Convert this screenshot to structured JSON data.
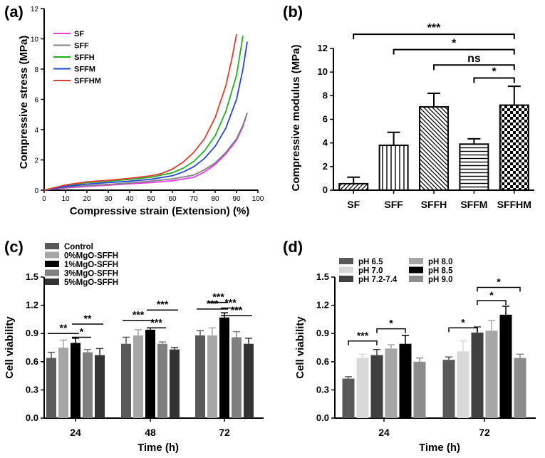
{
  "figure_name": "composite-figure",
  "chart_data": [
    {
      "id": "a",
      "type": "line",
      "panel_label": "(a)",
      "xlabel": "Compressive strain (Extension) (%)",
      "ylabel": "Compressive stress (MPa)",
      "xlim": [
        0,
        100
      ],
      "ylim": [
        0,
        12
      ],
      "xticks": [
        0,
        10,
        20,
        30,
        40,
        50,
        60,
        70,
        80,
        90,
        100
      ],
      "yticks": [
        0,
        2,
        4,
        6,
        8,
        10,
        12
      ],
      "legend_position": "top-left",
      "series": [
        {
          "name": "SF",
          "color": "#e63be6",
          "x": [
            0,
            10,
            20,
            30,
            40,
            50,
            60,
            70,
            75,
            80,
            85,
            90,
            93,
            95
          ],
          "y": [
            0,
            0.15,
            0.25,
            0.33,
            0.42,
            0.5,
            0.62,
            0.85,
            1.2,
            1.7,
            2.4,
            3.3,
            4.2,
            5.1
          ]
        },
        {
          "name": "SFF",
          "color": "#808080",
          "x": [
            0,
            10,
            20,
            30,
            40,
            50,
            60,
            70,
            75,
            80,
            85,
            90,
            93,
            95
          ],
          "y": [
            0,
            0.2,
            0.3,
            0.38,
            0.48,
            0.6,
            0.75,
            1.0,
            1.35,
            1.8,
            2.5,
            3.4,
            4.3,
            5.1
          ]
        },
        {
          "name": "SFFH",
          "color": "#1fb21f",
          "x": [
            0,
            10,
            20,
            30,
            40,
            50,
            60,
            65,
            70,
            75,
            80,
            85,
            90,
            93
          ],
          "y": [
            0,
            0.3,
            0.5,
            0.6,
            0.72,
            0.85,
            1.15,
            1.45,
            1.9,
            2.6,
            3.6,
            5.2,
            7.6,
            10.2
          ]
        },
        {
          "name": "SFFM",
          "color": "#2647d6",
          "x": [
            0,
            10,
            20,
            30,
            40,
            50,
            60,
            65,
            70,
            75,
            80,
            85,
            90,
            93,
            95
          ],
          "y": [
            0,
            0.25,
            0.4,
            0.5,
            0.6,
            0.72,
            0.95,
            1.2,
            1.55,
            2.1,
            2.9,
            4.1,
            6.0,
            8.0,
            9.8
          ]
        },
        {
          "name": "SFFHM",
          "color": "#e63b30",
          "x": [
            0,
            10,
            20,
            30,
            40,
            50,
            55,
            60,
            65,
            70,
            75,
            80,
            85,
            88,
            90
          ],
          "y": [
            0,
            0.35,
            0.55,
            0.65,
            0.78,
            0.95,
            1.1,
            1.4,
            1.85,
            2.5,
            3.4,
            4.8,
            6.9,
            8.8,
            10.3
          ]
        }
      ]
    },
    {
      "id": "b",
      "type": "bar",
      "panel_label": "(b)",
      "ylabel": "Compressive modulus (MPa)",
      "ylim": [
        0,
        12
      ],
      "yticks": [
        0,
        2,
        4,
        6,
        8,
        10,
        12
      ],
      "categories": [
        "SF",
        "SFF",
        "SFFH",
        "SFFM",
        "SFFHM"
      ],
      "values": [
        0.55,
        3.8,
        7.05,
        3.9,
        7.2
      ],
      "errors": [
        0.55,
        1.1,
        1.15,
        0.45,
        1.6
      ],
      "patterns": [
        "diag-up",
        "vertical",
        "diag-down",
        "horizontal",
        "checker"
      ],
      "significance": [
        {
          "from": 0,
          "to": 4,
          "label": "***",
          "level": 13.2
        },
        {
          "from": 1,
          "to": 4,
          "label": "*",
          "level": 11.9
        },
        {
          "from": 2,
          "to": 4,
          "label": "ns",
          "level": 10.6
        },
        {
          "from": 3,
          "to": 4,
          "label": "*",
          "level": 9.5
        }
      ]
    },
    {
      "id": "c",
      "type": "bar",
      "panel_label": "(c)",
      "xlabel": "Time (h)",
      "ylabel": "Cell viability",
      "ylim": [
        0,
        1.5
      ],
      "yticks": [
        0.0,
        0.3,
        0.6,
        0.9,
        1.2,
        1.5
      ],
      "categories": [
        "24",
        "48",
        "72"
      ],
      "legend_position": "top-left",
      "series": [
        {
          "name": "Control",
          "color": "#595959",
          "values": [
            0.64,
            0.79,
            0.88
          ],
          "errors": [
            0.06,
            0.07,
            0.05
          ]
        },
        {
          "name": "0%MgO-SFFH",
          "color": "#a6a6a6",
          "values": [
            0.75,
            0.88,
            0.88
          ],
          "errors": [
            0.08,
            0.06,
            0.08
          ]
        },
        {
          "name": "1%MgO-SFFH",
          "color": "#000000",
          "values": [
            0.8,
            0.94,
            1.07
          ],
          "errors": [
            0.05,
            0.02,
            0.05
          ]
        },
        {
          "name": "3%MgO-SFFH",
          "color": "#7f7f7f",
          "values": [
            0.7,
            0.79,
            0.86
          ],
          "errors": [
            0.03,
            0.02,
            0.06
          ]
        },
        {
          "name": "5%MgO-SFFH",
          "color": "#333333",
          "values": [
            0.67,
            0.73,
            0.79
          ],
          "errors": [
            0.07,
            0.02,
            0.06
          ]
        }
      ],
      "significance": [
        {
          "group": 0,
          "from": 0,
          "to": 2,
          "label": "**",
          "level": 0.9
        },
        {
          "group": 0,
          "from": 2,
          "to": 3,
          "label": "*",
          "level": 0.86
        },
        {
          "group": 0,
          "from": 2,
          "to": 4,
          "label": "**",
          "level": 1.0
        },
        {
          "group": 1,
          "from": 0,
          "to": 2,
          "label": "***",
          "level": 1.04
        },
        {
          "group": 1,
          "from": 2,
          "to": 3,
          "label": "***",
          "level": 0.96
        },
        {
          "group": 1,
          "from": 2,
          "to": 4,
          "label": "***",
          "level": 1.15
        },
        {
          "group": 2,
          "from": 1,
          "to": 2,
          "label": "***",
          "level": 1.23
        },
        {
          "group": 2,
          "from": 0,
          "to": 2,
          "label": "***",
          "level": 1.16
        },
        {
          "group": 2,
          "from": 2,
          "to": 3,
          "label": "***",
          "level": 1.17
        },
        {
          "group": 2,
          "from": 2,
          "to": 4,
          "label": "***",
          "level": 1.09
        }
      ]
    },
    {
      "id": "d",
      "type": "bar",
      "panel_label": "(d)",
      "xlabel": "Time (h)",
      "ylabel": "Cell viability",
      "ylim": [
        0,
        1.5
      ],
      "yticks": [
        0.0,
        0.3,
        0.6,
        0.9,
        1.2,
        1.5
      ],
      "categories": [
        "24",
        "72"
      ],
      "legend_position": "top-left",
      "series": [
        {
          "name": "pH 6.5",
          "color": "#595959",
          "values": [
            0.42,
            0.62
          ],
          "errors": [
            0.02,
            0.03
          ]
        },
        {
          "name": "pH 7.0",
          "color": "#d9d9d9",
          "values": [
            0.64,
            0.71
          ],
          "errors": [
            0.04,
            0.11
          ]
        },
        {
          "name": "pH 7.2-7.4",
          "color": "#404040",
          "values": [
            0.67,
            0.91
          ],
          "errors": [
            0.06,
            0.06
          ]
        },
        {
          "name": "pH 8.0",
          "color": "#a6a6a6",
          "values": [
            0.74,
            0.93
          ],
          "errors": [
            0.04,
            0.11
          ]
        },
        {
          "name": "pH 8.5",
          "color": "#000000",
          "values": [
            0.79,
            1.1
          ],
          "errors": [
            0.09,
            0.09
          ]
        },
        {
          "name": "pH 9.0",
          "color": "#8c8c8c",
          "values": [
            0.6,
            0.64
          ],
          "errors": [
            0.04,
            0.04
          ]
        }
      ],
      "significance": [
        {
          "group": 0,
          "from": 0,
          "to": 2,
          "label": "***",
          "level": 0.82
        },
        {
          "group": 0,
          "from": 2,
          "to": 4,
          "label": "*",
          "level": 0.95
        },
        {
          "group": 1,
          "from": 0,
          "to": 2,
          "label": "*",
          "level": 0.96
        },
        {
          "group": 1,
          "from": 2,
          "to": 4,
          "label": "*",
          "level": 1.25
        },
        {
          "group": 1,
          "from": 2,
          "to": 5,
          "label": "*",
          "level": 1.39
        }
      ]
    }
  ]
}
